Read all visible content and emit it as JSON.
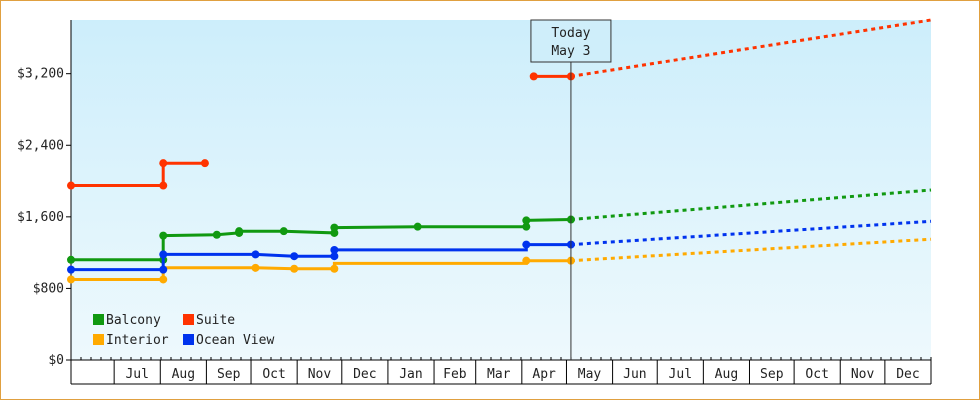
{
  "chart_data": {
    "type": "line",
    "title": "",
    "xlabel": "",
    "ylabel": "",
    "ylim": [
      0,
      3800
    ],
    "yticks": [
      {
        "value": 0,
        "label": "$0"
      },
      {
        "value": 800,
        "label": "$800"
      },
      {
        "value": 1600,
        "label": "$1,600"
      },
      {
        "value": 2400,
        "label": "$2,400"
      },
      {
        "value": 3200,
        "label": "$3,200"
      }
    ],
    "xlim": [
      "2022-06-01",
      "2023-12-31"
    ],
    "months": [
      {
        "label": "Jul",
        "start": "2022-06-30"
      },
      {
        "label": "Aug",
        "start": "2022-07-31"
      },
      {
        "label": "Sep",
        "start": "2022-08-31"
      },
      {
        "label": "Oct",
        "start": "2022-09-30"
      },
      {
        "label": "Nov",
        "start": "2022-10-31"
      },
      {
        "label": "Dec",
        "start": "2022-11-30"
      },
      {
        "label": "Jan",
        "start": "2022-12-31"
      },
      {
        "label": "Feb",
        "start": "2023-01-31"
      },
      {
        "label": "Mar",
        "start": "2023-02-28"
      },
      {
        "label": "Apr",
        "start": "2023-03-31"
      },
      {
        "label": "May",
        "start": "2023-04-30"
      },
      {
        "label": "Jun",
        "start": "2023-05-31"
      },
      {
        "label": "Jul",
        "start": "2023-06-30"
      },
      {
        "label": "Aug",
        "start": "2023-07-31"
      },
      {
        "label": "Sep",
        "start": "2023-08-31"
      },
      {
        "label": "Oct",
        "start": "2023-09-30"
      },
      {
        "label": "Nov",
        "start": "2023-10-31"
      },
      {
        "label": "Dec",
        "start": "2023-11-30"
      },
      {
        "label": "",
        "start": "2023-12-31"
      }
    ],
    "today": {
      "date": "2023-05-03",
      "line1": "Today",
      "line2": "May 3"
    },
    "legend_placement": "bottom-left",
    "grid": false,
    "series": [
      {
        "name": "Balcony",
        "color": "#119911",
        "points": [
          [
            "2022-06-01",
            1120
          ],
          [
            "2022-08-02",
            1120
          ],
          [
            "2022-08-02",
            1390
          ],
          [
            "2022-09-07",
            1400
          ],
          [
            "2022-09-22",
            1420
          ],
          [
            "2022-09-22",
            1440
          ],
          [
            "2022-10-22",
            1440
          ],
          [
            "2022-11-25",
            1420
          ],
          [
            "2022-11-25",
            1480
          ],
          [
            "2023-01-20",
            1490
          ],
          [
            "2023-04-03",
            1490
          ],
          [
            "2023-04-03",
            1560
          ],
          [
            "2023-05-03",
            1570
          ]
        ],
        "forecast": [
          [
            "2023-05-03",
            1570
          ],
          [
            "2023-12-31",
            1900
          ]
        ]
      },
      {
        "name": "Suite",
        "color": "#ff3300",
        "points": [
          [
            "2022-06-01",
            1950
          ],
          [
            "2022-08-02",
            1950
          ],
          [
            "2022-08-02",
            2200
          ],
          [
            "2022-08-30",
            2200
          ]
        ],
        "points2": [
          [
            "2023-04-08",
            3170
          ],
          [
            "2023-05-03",
            3170
          ]
        ],
        "forecast": [
          [
            "2023-05-03",
            3170
          ],
          [
            "2023-12-31",
            3800
          ]
        ]
      },
      {
        "name": "Interior",
        "color": "#ffaa00",
        "points": [
          [
            "2022-06-01",
            900
          ],
          [
            "2022-08-02",
            900
          ],
          [
            "2022-08-02",
            1030
          ],
          [
            "2022-10-03",
            1030
          ],
          [
            "2022-10-29",
            1020
          ],
          [
            "2022-11-25",
            1020
          ],
          [
            "2022-11-25",
            1080
          ],
          [
            "2023-04-03",
            1080
          ],
          [
            "2023-04-03",
            1110
          ],
          [
            "2023-05-03",
            1110
          ]
        ],
        "forecast": [
          [
            "2023-05-03",
            1110
          ],
          [
            "2023-12-31",
            1350
          ]
        ]
      },
      {
        "name": "Ocean View",
        "color": "#0033ee",
        "points": [
          [
            "2022-06-01",
            1010
          ],
          [
            "2022-08-02",
            1010
          ],
          [
            "2022-08-02",
            1180
          ],
          [
            "2022-10-03",
            1180
          ],
          [
            "2022-10-29",
            1160
          ],
          [
            "2022-11-25",
            1160
          ],
          [
            "2022-11-25",
            1230
          ],
          [
            "2023-04-03",
            1230
          ],
          [
            "2023-04-03",
            1290
          ],
          [
            "2023-05-03",
            1290
          ]
        ],
        "forecast": [
          [
            "2023-05-03",
            1290
          ],
          [
            "2023-12-31",
            1550
          ]
        ]
      }
    ],
    "markers": {
      "Balcony": [
        [
          "2022-06-01",
          1120
        ],
        [
          "2022-08-02",
          1120
        ],
        [
          "2022-08-02",
          1390
        ],
        [
          "2022-09-07",
          1400
        ],
        [
          "2022-09-22",
          1420
        ],
        [
          "2022-09-22",
          1440
        ],
        [
          "2022-10-22",
          1440
        ],
        [
          "2022-11-25",
          1420
        ],
        [
          "2022-11-25",
          1480
        ],
        [
          "2023-01-20",
          1490
        ],
        [
          "2023-04-03",
          1490
        ],
        [
          "2023-04-03",
          1560
        ],
        [
          "2023-05-03",
          1570
        ]
      ],
      "Suite": [
        [
          "2022-06-01",
          1950
        ],
        [
          "2022-08-02",
          1950
        ],
        [
          "2022-08-02",
          2200
        ],
        [
          "2022-08-30",
          2200
        ],
        [
          "2023-04-08",
          3170
        ],
        [
          "2023-05-03",
          3170
        ]
      ],
      "Interior": [
        [
          "2022-06-01",
          900
        ],
        [
          "2022-08-02",
          900
        ],
        [
          "2022-10-03",
          1030
        ],
        [
          "2022-10-29",
          1020
        ],
        [
          "2022-11-25",
          1020
        ],
        [
          "2023-04-03",
          1110
        ],
        [
          "2023-05-03",
          1110
        ]
      ],
      "Ocean View": [
        [
          "2022-06-01",
          1010
        ],
        [
          "2022-08-02",
          1010
        ],
        [
          "2022-08-02",
          1180
        ],
        [
          "2022-10-03",
          1180
        ],
        [
          "2022-10-29",
          1160
        ],
        [
          "2022-11-25",
          1160
        ],
        [
          "2022-11-25",
          1230
        ],
        [
          "2023-04-03",
          1290
        ],
        [
          "2023-05-03",
          1290
        ]
      ]
    },
    "legend": [
      {
        "name": "Balcony",
        "color": "#119911"
      },
      {
        "name": "Suite",
        "color": "#ff3300"
      },
      {
        "name": "Interior",
        "color": "#ffaa00"
      },
      {
        "name": "Ocean View",
        "color": "#0033ee"
      }
    ]
  }
}
